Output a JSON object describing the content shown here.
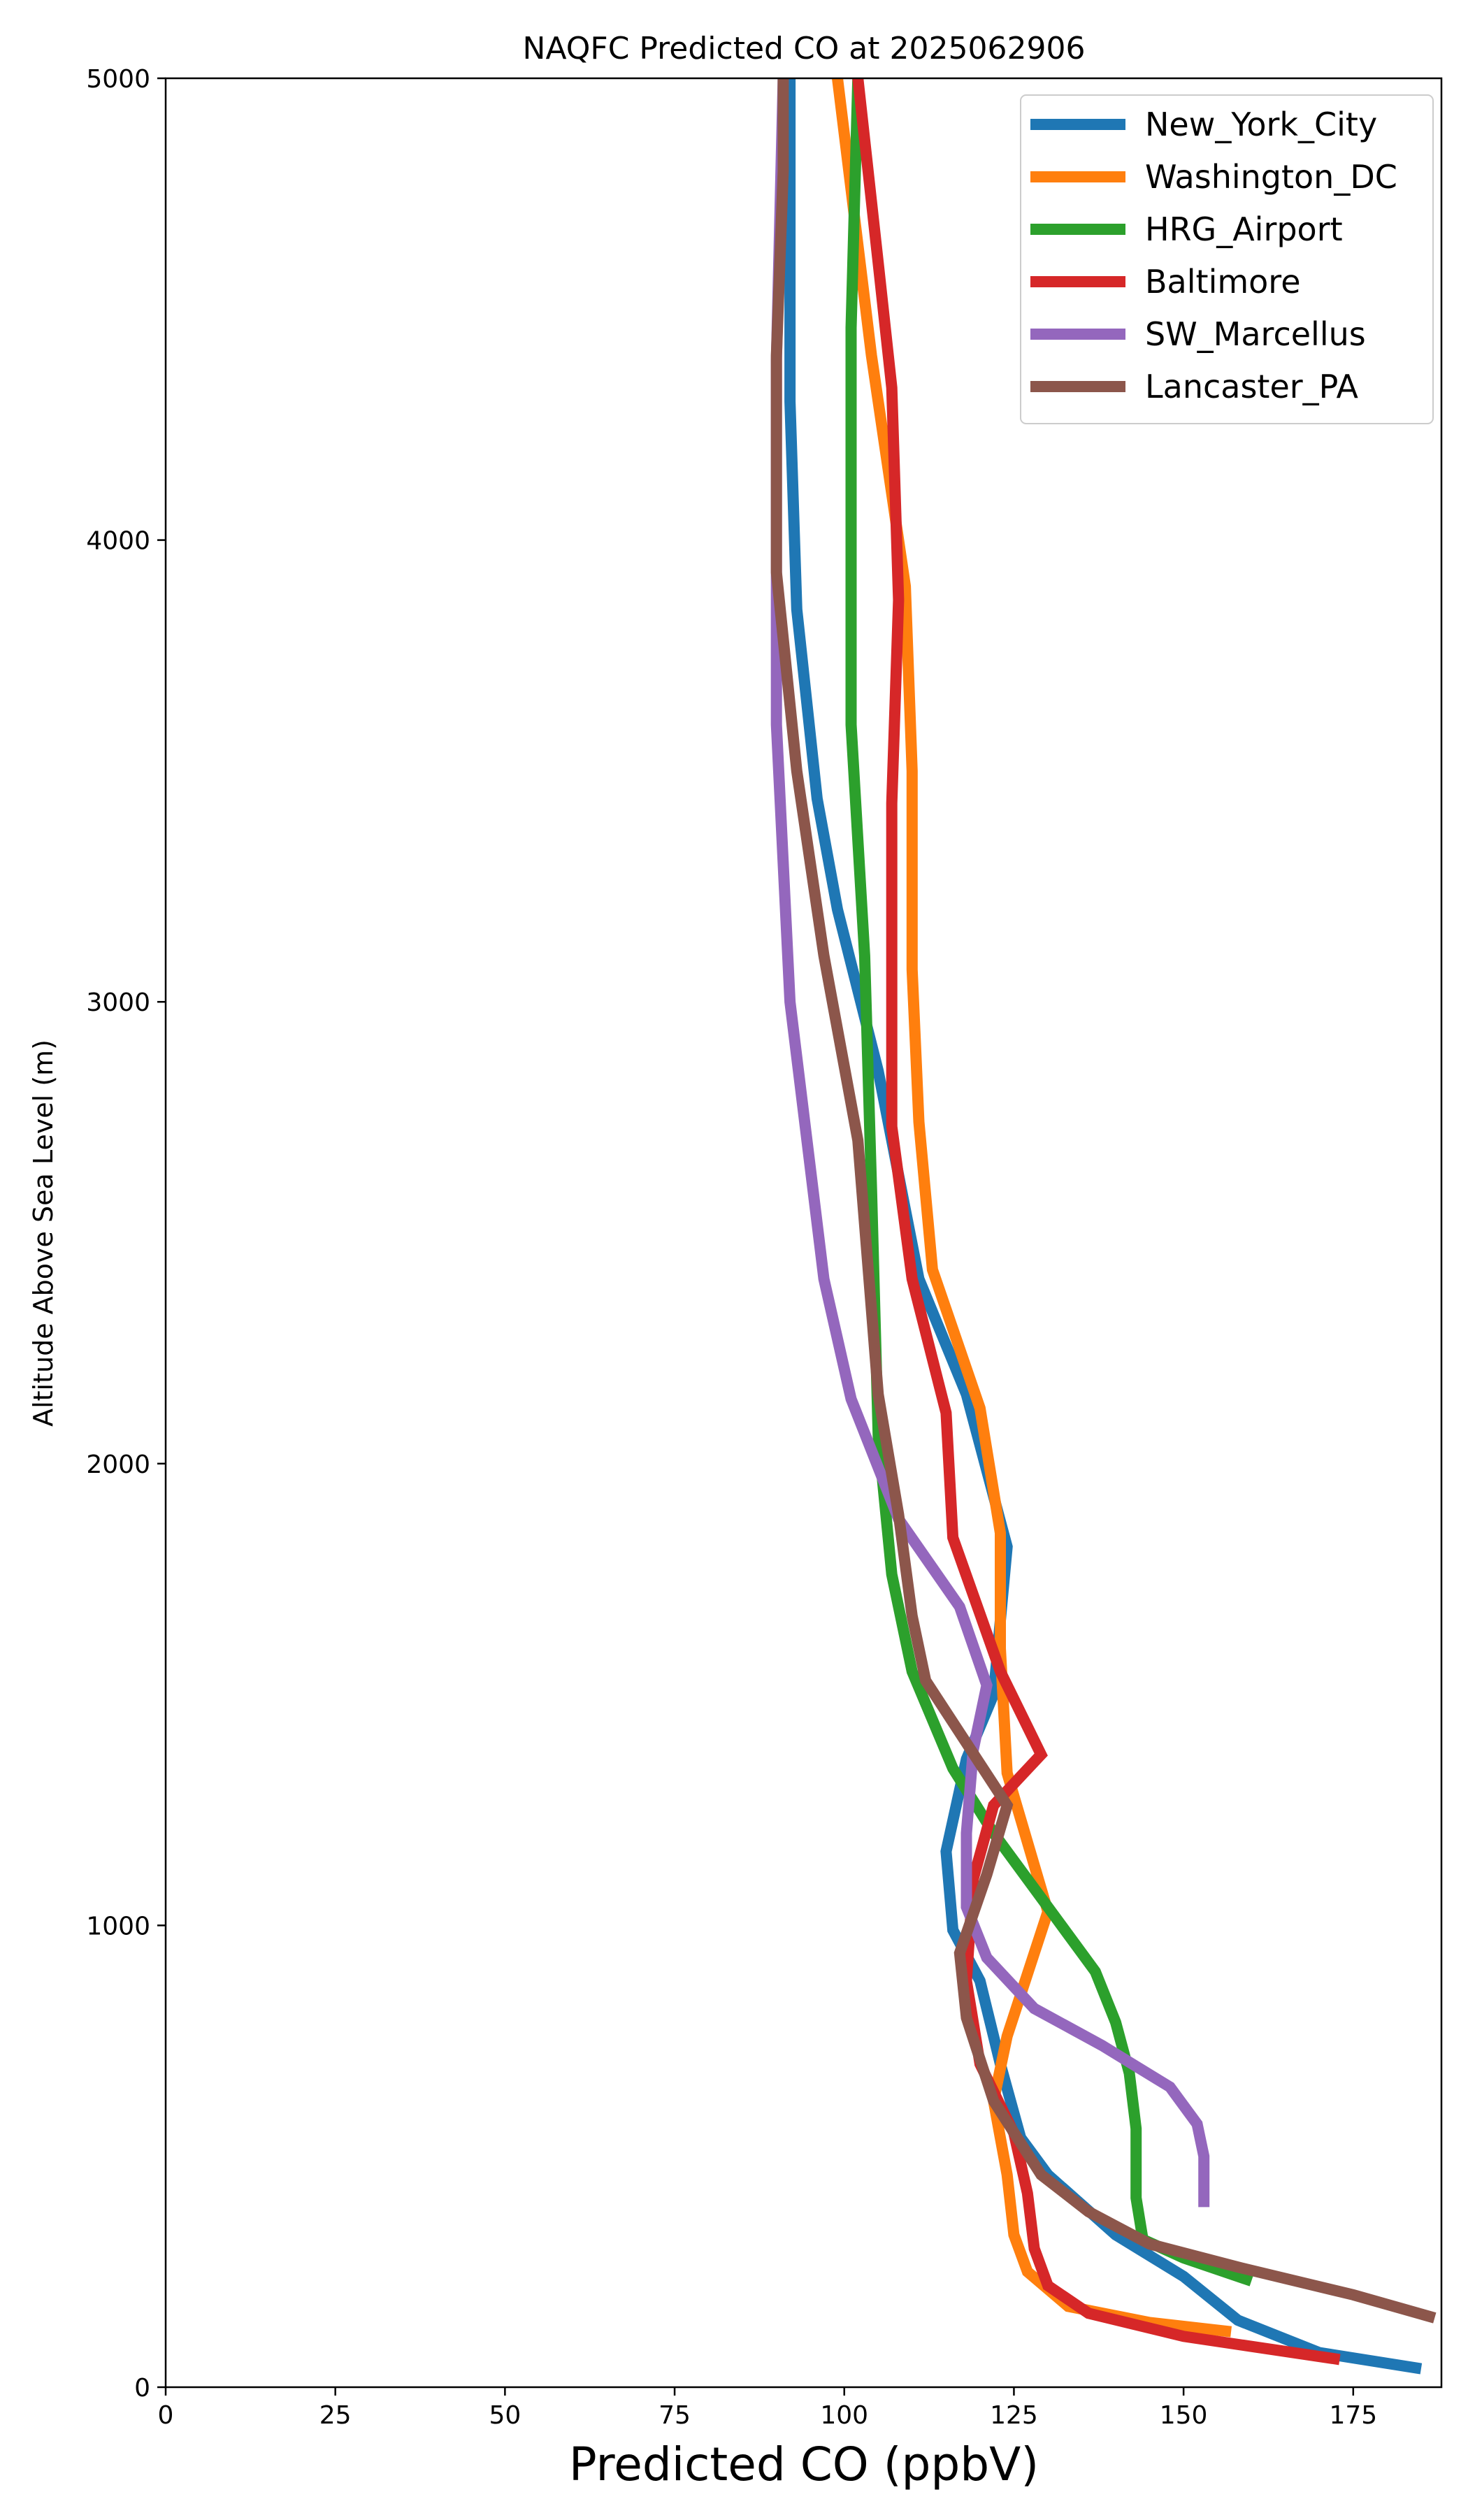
{
  "chart_data": {
    "type": "line",
    "title": "NAQFC Predicted CO at 2025062906",
    "xlabel": "Predicted CO (ppbV)",
    "ylabel": "Altitude Above Sea Level (m)",
    "xlim": [
      0,
      188
    ],
    "ylim": [
      0,
      5000
    ],
    "xticks": [
      "0",
      "25",
      "50",
      "75",
      "100",
      "125",
      "150",
      "175"
    ],
    "yticks": [
      "0",
      "1000",
      "2000",
      "3000",
      "4000",
      "5000"
    ],
    "grid": false,
    "legend_position": "top-right",
    "series": [
      {
        "name": "New_York_City",
        "color": "#1f77b4",
        "points": [
          [
            185,
            40
          ],
          [
            170,
            75
          ],
          [
            158,
            145
          ],
          [
            150,
            240
          ],
          [
            140,
            330
          ],
          [
            130,
            460
          ],
          [
            126,
            540
          ],
          [
            123,
            700
          ],
          [
            120,
            880
          ],
          [
            116,
            990
          ],
          [
            115,
            1160
          ],
          [
            118,
            1360
          ],
          [
            122,
            1500
          ],
          [
            124,
            1820
          ],
          [
            118,
            2150
          ],
          [
            111,
            2400
          ],
          [
            105,
            2850
          ],
          [
            99,
            3200
          ],
          [
            96,
            3440
          ],
          [
            93,
            3850
          ],
          [
            92,
            4300
          ],
          [
            92,
            5000
          ]
        ]
      },
      {
        "name": "Washington_DC",
        "color": "#ff7f0e",
        "points": [
          [
            157,
            120
          ],
          [
            145,
            140
          ],
          [
            133,
            175
          ],
          [
            127,
            250
          ],
          [
            125,
            330
          ],
          [
            124,
            460
          ],
          [
            122,
            620
          ],
          [
            124,
            760
          ],
          [
            130,
            1030
          ],
          [
            124,
            1330
          ],
          [
            123,
            1600
          ],
          [
            123,
            1850
          ],
          [
            120,
            2120
          ],
          [
            113,
            2420
          ],
          [
            111,
            2740
          ],
          [
            110,
            3070
          ],
          [
            110,
            3500
          ],
          [
            109,
            3900
          ],
          [
            104,
            4400
          ],
          [
            99,
            5000
          ]
        ]
      },
      {
        "name": "HRG_Airport",
        "color": "#2ca02c",
        "points": [
          [
            160,
            230
          ],
          [
            150,
            280
          ],
          [
            144,
            320
          ],
          [
            143,
            410
          ],
          [
            143,
            560
          ],
          [
            142,
            680
          ],
          [
            140,
            790
          ],
          [
            137,
            900
          ],
          [
            130,
            1040
          ],
          [
            122,
            1200
          ],
          [
            116,
            1340
          ],
          [
            110,
            1550
          ],
          [
            107,
            1760
          ],
          [
            105,
            2060
          ],
          [
            104,
            2600
          ],
          [
            103,
            3100
          ],
          [
            101,
            3600
          ],
          [
            101,
            4460
          ],
          [
            102,
            5000
          ]
        ]
      },
      {
        "name": "Baltimore",
        "color": "#d62728",
        "points": [
          [
            173,
            60
          ],
          [
            150,
            110
          ],
          [
            136,
            160
          ],
          [
            130,
            220
          ],
          [
            128,
            300
          ],
          [
            127,
            420
          ],
          [
            125,
            550
          ],
          [
            120,
            700
          ],
          [
            118,
            880
          ],
          [
            119,
            1100
          ],
          [
            122,
            1260
          ],
          [
            129,
            1370
          ],
          [
            123,
            1550
          ],
          [
            116,
            1840
          ],
          [
            115,
            2110
          ],
          [
            110,
            2400
          ],
          [
            107,
            2730
          ],
          [
            107,
            3430
          ],
          [
            108,
            3870
          ],
          [
            107,
            4330
          ],
          [
            105,
            4600
          ],
          [
            102,
            5000
          ]
        ]
      },
      {
        "name": "SW_Marcellus",
        "color": "#9467bd",
        "points": [
          [
            153,
            390
          ],
          [
            153,
            500
          ],
          [
            152,
            570
          ],
          [
            148,
            650
          ],
          [
            138,
            740
          ],
          [
            128,
            820
          ],
          [
            121,
            930
          ],
          [
            118,
            1040
          ],
          [
            118,
            1200
          ],
          [
            119,
            1380
          ],
          [
            121,
            1520
          ],
          [
            117,
            1690
          ],
          [
            108,
            1880
          ],
          [
            101,
            2140
          ],
          [
            97,
            2400
          ],
          [
            92,
            3000
          ],
          [
            90,
            3600
          ],
          [
            90,
            4390
          ],
          [
            91,
            5000
          ]
        ]
      },
      {
        "name": "Lancaster_PA",
        "color": "#8c564b",
        "points": [
          [
            187,
            150
          ],
          [
            175,
            200
          ],
          [
            158,
            260
          ],
          [
            145,
            310
          ],
          [
            136,
            380
          ],
          [
            129,
            460
          ],
          [
            122,
            620
          ],
          [
            118,
            800
          ],
          [
            117,
            940
          ],
          [
            121,
            1110
          ],
          [
            124,
            1260
          ],
          [
            112,
            1530
          ],
          [
            110,
            1670
          ],
          [
            108,
            1890
          ],
          [
            105,
            2150
          ],
          [
            102,
            2700
          ],
          [
            97,
            3100
          ],
          [
            93,
            3500
          ],
          [
            90,
            3930
          ],
          [
            90,
            4400
          ],
          [
            91,
            4800
          ],
          [
            91,
            5000
          ]
        ]
      }
    ]
  }
}
